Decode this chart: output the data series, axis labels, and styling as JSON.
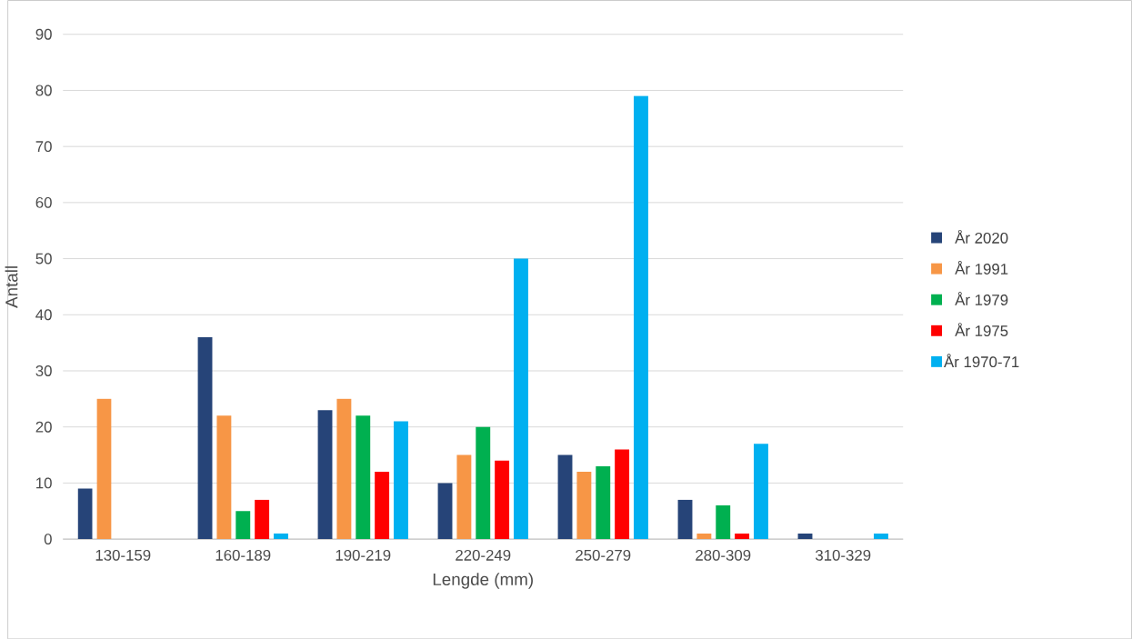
{
  "chart_data": {
    "type": "bar",
    "xlabel": "Lengde (mm)",
    "ylabel": "Antall",
    "categories": [
      "130-159",
      "160-189",
      "190-219",
      "220-249",
      "250-279",
      "280-309",
      "310-329"
    ],
    "series": [
      {
        "name": "År 2020",
        "color": "#264478",
        "values": [
          9,
          36,
          23,
          10,
          15,
          7,
          1
        ]
      },
      {
        "name": "År 1991",
        "color": "#f79646",
        "values": [
          25,
          22,
          25,
          15,
          12,
          1,
          0
        ]
      },
      {
        "name": "År 1979",
        "color": "#00b050",
        "values": [
          0,
          5,
          22,
          20,
          13,
          6,
          0
        ]
      },
      {
        "name": "År 1975",
        "color": "#ff0000",
        "values": [
          0,
          7,
          12,
          14,
          16,
          1,
          0
        ]
      },
      {
        "name": "År 1970-71",
        "color": "#00b0f0",
        "values": [
          0,
          1,
          21,
          50,
          79,
          17,
          1
        ]
      }
    ],
    "ylim": [
      0,
      90
    ],
    "yticks": [
      0,
      10,
      20,
      30,
      40,
      50,
      60,
      70,
      80,
      90
    ],
    "grid": "y",
    "legend": "right"
  }
}
